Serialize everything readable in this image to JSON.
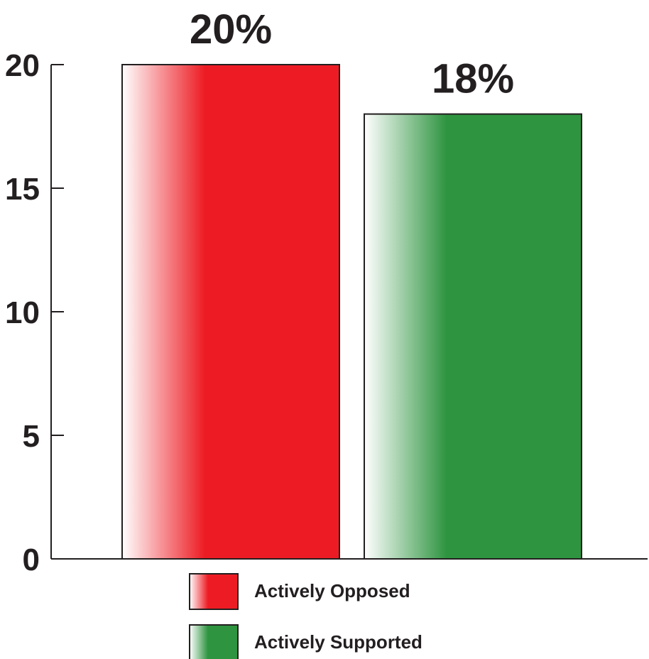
{
  "chart_data": {
    "type": "bar",
    "categories": [
      "Actively Opposed",
      "Actively Supported"
    ],
    "values": [
      20,
      18
    ],
    "data_labels": [
      "20%",
      "18%"
    ],
    "colors": [
      "#ed1c24",
      "#2e9440"
    ],
    "ylim": [
      0,
      20
    ],
    "yticks": [
      0,
      5,
      10,
      15,
      20
    ],
    "grid": false,
    "legend": {
      "placement": "bottom",
      "entries": [
        "Actively Opposed",
        "Actively Supported"
      ]
    }
  }
}
